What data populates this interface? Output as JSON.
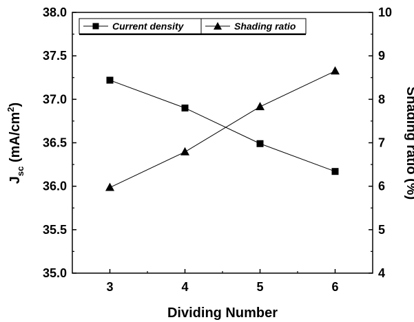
{
  "chart_data": {
    "type": "line",
    "xlabel": "Dividing Number",
    "ylabel_left": {
      "main": "J",
      "sub": "sc",
      "unit_pre": " (mA/cm",
      "sup": "2",
      "unit_post": ")"
    },
    "ylabel_right": "Shading ratio (%)",
    "x": [
      3,
      4,
      5,
      6
    ],
    "x_ticks": [
      "3",
      "4",
      "5",
      "6"
    ],
    "xlim": [
      2.5,
      6.5
    ],
    "ylim_left": [
      35.0,
      38.0
    ],
    "ylim_right": [
      4,
      10
    ],
    "y_ticks_left": [
      "35.0",
      "35.5",
      "36.0",
      "36.5",
      "37.0",
      "37.5",
      "38.0"
    ],
    "y_ticks_right": [
      "4",
      "5",
      "6",
      "7",
      "8",
      "9",
      "10"
    ],
    "series": [
      {
        "name": "Current density",
        "axis": "left",
        "marker": "square",
        "values": [
          37.22,
          36.9,
          36.49,
          36.17
        ]
      },
      {
        "name": "Shading ratio",
        "axis": "right",
        "marker": "triangle",
        "values": [
          5.97,
          6.79,
          7.83,
          8.65
        ]
      }
    ],
    "legend_position": "top",
    "grid": false
  }
}
